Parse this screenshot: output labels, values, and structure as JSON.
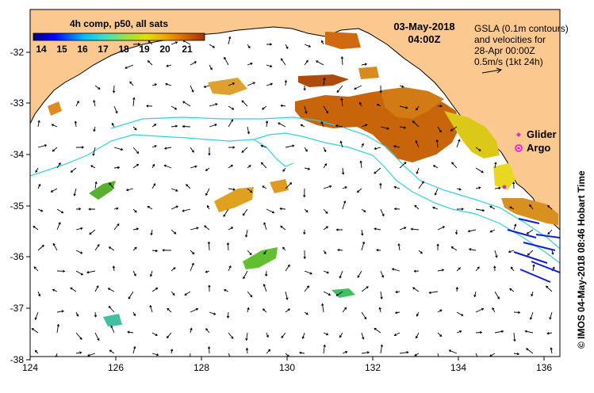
{
  "map": {
    "title_date": "03-May-2018",
    "title_time": "04:00Z",
    "colorbar": {
      "title": "4h comp, p50, all sats",
      "ticks": [
        "14",
        "15",
        "16",
        "17",
        "18",
        "19",
        "20",
        "21"
      ],
      "range": [
        13.5,
        22
      ],
      "colors": [
        "#00007f",
        "#0000ff",
        "#007fff",
        "#00ffff",
        "#7fff7f",
        "#ffff00",
        "#ff7f00",
        "#ff0000",
        "#7f0000"
      ]
    },
    "gsla_note": [
      "GSLA (0.1m contours)",
      "and velocities for",
      "28-Apr 00:00Z",
      "0.5m/s (1kt 24h)"
    ],
    "legend": {
      "glider_label": "Glider",
      "argo_label": "Argo",
      "glider_color": "#cc33cc",
      "argo_color": "#ff00ff"
    },
    "credit": "© IMOS 04-May-2018 08:46 Hobart Time",
    "lon_ticks": [
      "124",
      "126",
      "128",
      "130",
      "132",
      "134",
      "136"
    ],
    "lat_ticks": [
      "-32",
      "-33",
      "-34",
      "-35",
      "-36",
      "-37",
      "-38"
    ],
    "extent": {
      "lon": [
        124,
        136.6
      ],
      "lat": [
        -38.2,
        -31.4
      ]
    },
    "land_color": "#fbc890",
    "contour_color": "#33d0e0"
  }
}
